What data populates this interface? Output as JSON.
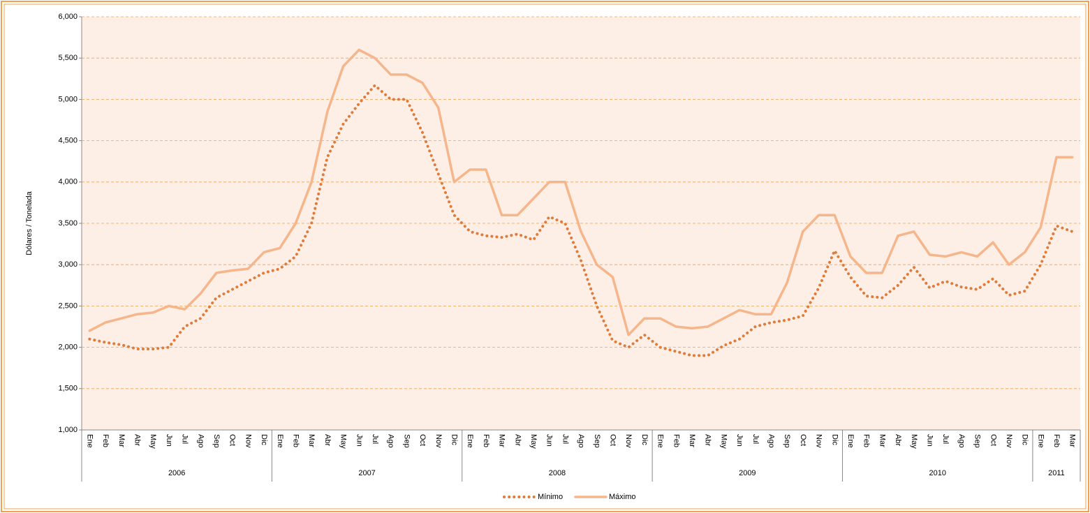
{
  "chart_data": {
    "type": "line",
    "y_label": "Dólares / Tonelada",
    "categories": [
      "Ene",
      "Feb",
      "Mar",
      "Abr",
      "May",
      "Jun",
      "Jul",
      "Ago",
      "Sep",
      "Oct",
      "Nov",
      "Dic",
      "Ene",
      "Feb",
      "Mar",
      "Abr",
      "May",
      "Jun",
      "Jul",
      "Ago",
      "Sep",
      "Oct",
      "Nov",
      "Dic",
      "Ene",
      "Feb",
      "Mar",
      "Abr",
      "May",
      "Jun",
      "Jul",
      "Ago",
      "Sep",
      "Oct",
      "Nov",
      "Dic",
      "Ene",
      "Feb",
      "Mar",
      "Abr",
      "May",
      "Jun",
      "Jul",
      "Ago",
      "Sep",
      "Oct",
      "Nov",
      "Dic",
      "Ene",
      "Feb",
      "Mar",
      "Abr",
      "May",
      "Jun",
      "Jul",
      "Ago",
      "Sep",
      "Oct",
      "Nov",
      "Dic",
      "Ene",
      "Feb",
      "Mar"
    ],
    "groups": [
      "2006",
      "2007",
      "2008",
      "2009",
      "2010",
      "2011"
    ],
    "series": [
      {
        "name": "Mínimo",
        "color": "#e07b39",
        "dash": "dotted",
        "values": [
          2100,
          2060,
          2030,
          1980,
          1980,
          2000,
          2250,
          2350,
          2600,
          2700,
          2800,
          2900,
          2950,
          3100,
          3500,
          4300,
          4700,
          4950,
          5170,
          5000,
          5000,
          4600,
          4100,
          3600,
          3400,
          3350,
          3330,
          3370,
          3300,
          3580,
          3500,
          3050,
          2500,
          2080,
          2000,
          2150,
          2000,
          1950,
          1900,
          1900,
          2020,
          2100,
          2250,
          2300,
          2330,
          2380,
          2720,
          3170,
          2850,
          2620,
          2600,
          2750,
          2970,
          2720,
          2800,
          2730,
          2700,
          2830,
          2630,
          2680,
          3000,
          3470,
          3400
        ]
      },
      {
        "name": "Máximo",
        "color": "#f6b68c",
        "dash": "solid",
        "values": [
          2200,
          2300,
          2350,
          2400,
          2420,
          2500,
          2460,
          2650,
          2900,
          2930,
          2950,
          3150,
          3200,
          3500,
          4000,
          4850,
          5400,
          5600,
          5500,
          5300,
          5300,
          5200,
          4900,
          4000,
          4150,
          4150,
          3600,
          3600,
          3800,
          4000,
          4000,
          3400,
          3000,
          2850,
          2150,
          2350,
          2350,
          2250,
          2230,
          2250,
          2350,
          2450,
          2400,
          2400,
          2780,
          3400,
          3600,
          3600,
          3100,
          2900,
          2900,
          3350,
          3400,
          3120,
          3100,
          3150,
          3100,
          3270,
          3000,
          3150,
          3450,
          4300,
          4300
        ]
      }
    ],
    "ylim": [
      1000,
      6000
    ],
    "yticks": [
      {
        "value": 1000,
        "label": "1,000"
      },
      {
        "value": 1500,
        "label": "1,500"
      },
      {
        "value": 2000,
        "label": "2,000"
      },
      {
        "value": 2500,
        "label": "2,500"
      },
      {
        "value": 3000,
        "label": "3,000"
      },
      {
        "value": 3500,
        "label": "3,500"
      },
      {
        "value": 4000,
        "label": "4,000"
      },
      {
        "value": 4500,
        "label": "4,500"
      },
      {
        "value": 5000,
        "label": "5,000"
      },
      {
        "value": 5500,
        "label": "5,500"
      },
      {
        "value": 6000,
        "label": "6,000"
      }
    ],
    "grid": true,
    "legend": "bottom"
  }
}
